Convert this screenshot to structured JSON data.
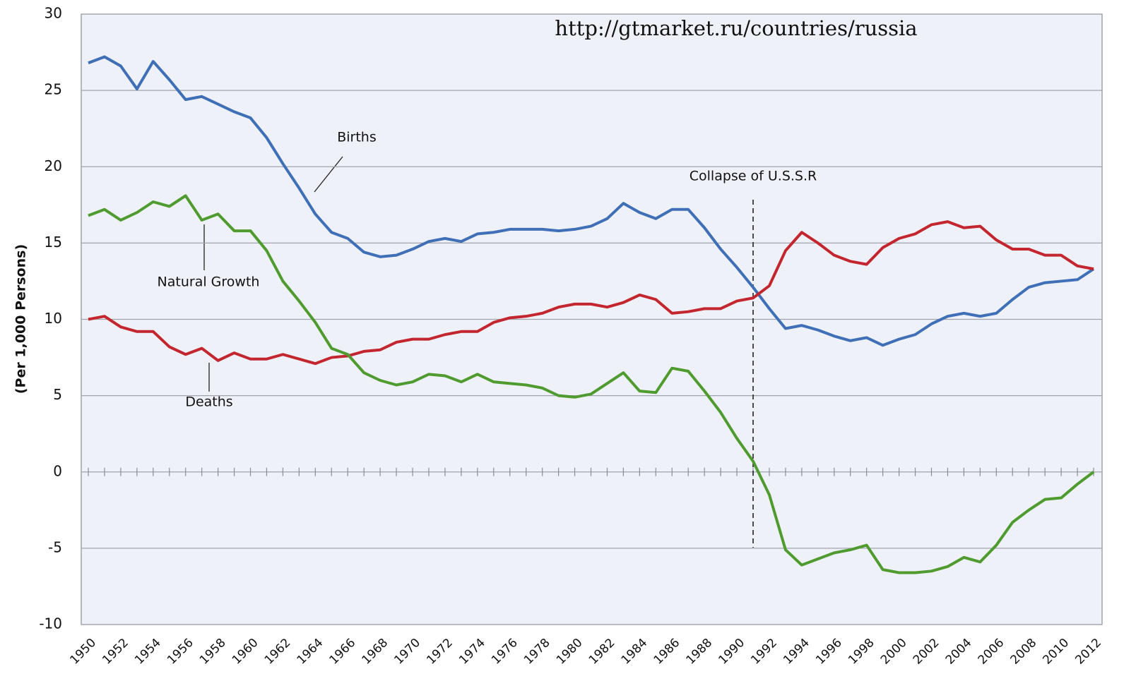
{
  "chart_data": {
    "type": "line",
    "y_label": "(Per 1,000 Persons)",
    "x": [
      1950,
      1951,
      1952,
      1953,
      1954,
      1955,
      1956,
      1957,
      1958,
      1959,
      1960,
      1961,
      1962,
      1963,
      1964,
      1965,
      1966,
      1967,
      1968,
      1969,
      1970,
      1971,
      1972,
      1973,
      1974,
      1975,
      1976,
      1977,
      1978,
      1979,
      1980,
      1981,
      1982,
      1983,
      1984,
      1985,
      1986,
      1987,
      1988,
      1989,
      1990,
      1991,
      1992,
      1993,
      1994,
      1995,
      1996,
      1997,
      1998,
      1999,
      2000,
      2001,
      2002,
      2003,
      2004,
      2005,
      2006,
      2007,
      2008,
      2009,
      2010,
      2011,
      2012
    ],
    "series": [
      {
        "name": "Births",
        "color": "#3f6fb6",
        "values": [
          26.8,
          27.2,
          26.6,
          25.1,
          26.9,
          25.7,
          24.4,
          24.6,
          24.1,
          23.6,
          23.2,
          21.9,
          20.2,
          18.6,
          16.9,
          15.7,
          15.3,
          14.4,
          14.1,
          14.2,
          14.6,
          15.1,
          15.3,
          15.1,
          15.6,
          15.7,
          15.9,
          15.9,
          15.9,
          15.8,
          15.9,
          16.1,
          16.6,
          17.6,
          17.0,
          16.6,
          17.2,
          17.2,
          16.0,
          14.6,
          13.4,
          12.1,
          10.7,
          9.4,
          9.6,
          9.3,
          8.9,
          8.6,
          8.8,
          8.3,
          8.7,
          9.0,
          9.7,
          10.2,
          10.4,
          10.2,
          10.4,
          11.3,
          12.1,
          12.4,
          12.5,
          12.6,
          13.3
        ]
      },
      {
        "name": "Deaths",
        "color": "#c3262e",
        "values": [
          10.0,
          10.2,
          9.5,
          9.2,
          9.2,
          8.2,
          7.7,
          8.1,
          7.3,
          7.8,
          7.4,
          7.4,
          7.7,
          7.4,
          7.1,
          7.5,
          7.6,
          7.9,
          8.0,
          8.5,
          8.7,
          8.7,
          9.0,
          9.2,
          9.2,
          9.8,
          10.1,
          10.2,
          10.4,
          10.8,
          11.0,
          11.0,
          10.8,
          11.1,
          11.6,
          11.3,
          10.4,
          10.5,
          10.7,
          10.7,
          11.2,
          11.4,
          12.2,
          14.5,
          15.7,
          15.0,
          14.2,
          13.8,
          13.6,
          14.7,
          15.3,
          15.6,
          16.2,
          16.4,
          16.0,
          16.1,
          15.2,
          14.6,
          14.6,
          14.2,
          14.2,
          13.5,
          13.3
        ]
      },
      {
        "name": "Natural Growth",
        "color": "#4f9b2f",
        "values": [
          16.8,
          17.2,
          16.5,
          17.0,
          17.7,
          17.4,
          18.1,
          16.5,
          16.9,
          15.8,
          15.8,
          14.5,
          12.5,
          11.2,
          9.8,
          8.1,
          7.7,
          6.5,
          6.0,
          5.7,
          5.9,
          6.4,
          6.3,
          5.9,
          6.4,
          5.9,
          5.8,
          5.7,
          5.5,
          5.0,
          4.9,
          5.1,
          5.8,
          6.5,
          5.3,
          5.2,
          6.8,
          6.6,
          5.3,
          3.9,
          2.2,
          0.7,
          -1.5,
          -5.1,
          -6.1,
          -5.7,
          -5.3,
          -5.1,
          -4.8,
          -6.4,
          -6.6,
          -6.6,
          -6.5,
          -6.2,
          -5.6,
          -5.9,
          -4.8,
          -3.3,
          -2.5,
          -1.8,
          -1.7,
          -0.8,
          0.0
        ]
      }
    ],
    "xlim": [
      1950,
      2012
    ],
    "xticks": [
      1950,
      1952,
      1954,
      1956,
      1958,
      1960,
      1962,
      1964,
      1966,
      1968,
      1970,
      1972,
      1974,
      1976,
      1978,
      1980,
      1982,
      1984,
      1986,
      1988,
      1990,
      1992,
      1994,
      1996,
      1998,
      2000,
      2002,
      2004,
      2006,
      2008,
      2010,
      2012
    ],
    "ylim": [
      -10,
      30
    ],
    "yticks": [
      -10,
      -5,
      0,
      5,
      10,
      15,
      20,
      25,
      30
    ],
    "grid": true,
    "source": "http://gtmarket.ru/countries/russia",
    "annotations": [
      {
        "text": "Collapse of U.S.S.R",
        "x": 1991
      }
    ]
  }
}
